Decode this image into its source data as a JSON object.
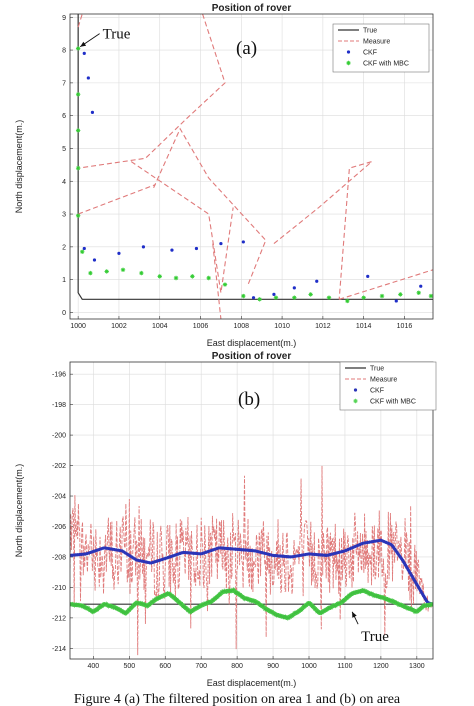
{
  "caption": "Figure 4 (a) The filtered position on area 1 and (b) on area",
  "chart_data": [
    {
      "type": "line",
      "panel_label": "(a)",
      "title": "Position of rover",
      "xlabel": "East displacement(m.)",
      "ylabel": "North displacement(m.)",
      "xlim": [
        999.6,
        1017.4
      ],
      "ylim": [
        -0.2,
        9.1
      ],
      "xticks": [
        1000,
        1002,
        1004,
        1006,
        1008,
        1010,
        1012,
        1014,
        1016
      ],
      "yticks": [
        0,
        1,
        2,
        3,
        4,
        5,
        6,
        7,
        8,
        9
      ],
      "grid": true,
      "legend_position": "top-right",
      "annotation": {
        "text": "True",
        "x": 1001.2,
        "y": 8.5,
        "arrow_to": [
          1000.1,
          8.1
        ]
      },
      "series": [
        {
          "name": "True",
          "style": "solid",
          "color": "#333333",
          "x": [
            1000.0,
            1000.0,
            1000.2,
            1017.4
          ],
          "y": [
            9.1,
            0.6,
            0.4,
            0.4
          ]
        },
        {
          "name": "Measure",
          "style": "dashed",
          "color": "#e07a7a",
          "segments": [
            {
              "x": [
                1000.0,
                1000.2
              ],
              "y": [
                8.7,
                9.1
              ]
            },
            {
              "x": [
                1006.1,
                1007.2,
                1005.3,
                1003.3,
                1000.0
              ],
              "y": [
                9.1,
                7.0,
                5.9,
                4.7,
                4.4
              ]
            },
            {
              "x": [
                1000.0,
                1003.8
              ],
              "y": [
                3.0,
                3.9
              ]
            },
            {
              "x": [
                1002.6,
                1006.4,
                1007.0,
                1007.6
              ],
              "y": [
                4.6,
                3.0,
                0.6,
                3.2
              ]
            },
            {
              "x": [
                1003.7,
                1005.0,
                1006.4,
                1009.2,
                1008.3
              ],
              "y": [
                3.8,
                5.6,
                4.1,
                2.2,
                0.8
              ]
            },
            {
              "x": [
                1006.6,
                1007.0
              ],
              "y": [
                2.1,
                -0.2
              ]
            },
            {
              "x": [
                1009.6,
                1011.8,
                1014.4,
                1013.3,
                1012.8
              ],
              "y": [
                2.1,
                3.2,
                4.6,
                4.4,
                0.4
              ]
            },
            {
              "x": [
                1012.8,
                1017.4
              ],
              "y": [
                0.4,
                1.3
              ]
            }
          ]
        },
        {
          "name": "CKF",
          "style": "dots",
          "color": "#1f2ec8",
          "x": [
            1000.3,
            1000.5,
            1000.7,
            1000.3,
            1000.8,
            1002.0,
            1003.2,
            1004.6,
            1005.8,
            1007.0,
            1008.1,
            1008.6,
            1009.6,
            1010.6,
            1011.7,
            1014.2,
            1015.6,
            1016.8
          ],
          "y": [
            7.9,
            7.15,
            6.1,
            1.95,
            1.6,
            1.8,
            2.0,
            1.9,
            1.95,
            2.1,
            2.15,
            0.45,
            0.55,
            0.75,
            0.95,
            1.1,
            0.35,
            0.8
          ]
        },
        {
          "name": "CKF with MBC",
          "style": "stars",
          "color": "#33cc33",
          "x": [
            1000.0,
            1000.0,
            1000.0,
            1000.0,
            1000.0,
            1000.2,
            1000.6,
            1001.4,
            1002.2,
            1003.1,
            1004.0,
            1004.8,
            1005.6,
            1006.4,
            1007.2,
            1008.1,
            1008.9,
            1009.7,
            1010.6,
            1011.4,
            1012.3,
            1013.2,
            1014.0,
            1014.9,
            1015.8,
            1016.7,
            1017.3
          ],
          "y": [
            8.05,
            6.65,
            5.55,
            4.4,
            2.95,
            1.85,
            1.2,
            1.25,
            1.3,
            1.2,
            1.1,
            1.05,
            1.1,
            1.05,
            0.85,
            0.5,
            0.4,
            0.45,
            0.45,
            0.55,
            0.45,
            0.35,
            0.45,
            0.5,
            0.55,
            0.6,
            0.5
          ]
        }
      ]
    },
    {
      "type": "line",
      "panel_label": "(b)",
      "title": "Position of rover",
      "xlabel": "East displacement(m.)",
      "ylabel": "North displacement(m.)",
      "xlim": [
        335,
        1345
      ],
      "ylim": [
        -214.7,
        -195.2
      ],
      "xticks": [
        400,
        500,
        600,
        700,
        800,
        900,
        1000,
        1100,
        1200,
        1300
      ],
      "yticks": [
        -196,
        -198,
        -200,
        -202,
        -204,
        -206,
        -208,
        -210,
        -212,
        -214
      ],
      "grid": true,
      "legend_position": "top-right",
      "annotation": {
        "text": "True",
        "x": 1145,
        "y": -213.2,
        "arrow_to": [
          1120,
          -211.6
        ]
      },
      "series": [
        {
          "name": "True",
          "style": "solid",
          "color": "#333333",
          "x": [
            335,
            1345
          ],
          "y": [
            -211.1,
            -211.1
          ]
        },
        {
          "name": "Measure",
          "style": "noisy-dashed",
          "color": "#e07a7a",
          "noise_amplitude": 2.6,
          "x": [
            335,
            400,
            500,
            600,
            700,
            800,
            900,
            1000,
            1100,
            1200,
            1250,
            1300,
            1330,
            1345
          ],
          "y": [
            -207.7,
            -207.6,
            -207.9,
            -208.2,
            -207.8,
            -207.6,
            -207.9,
            -208.0,
            -207.8,
            -207.3,
            -208.0,
            -209.5,
            -211.0,
            -211.1
          ]
        },
        {
          "name": "CKF",
          "style": "thick-dots",
          "color": "#2a35b8",
          "x": [
            335,
            380,
            430,
            480,
            520,
            560,
            600,
            650,
            700,
            750,
            800,
            850,
            900,
            950,
            1000,
            1050,
            1100,
            1150,
            1200,
            1230,
            1260,
            1290,
            1310,
            1330,
            1345
          ],
          "y": [
            -207.9,
            -207.8,
            -207.4,
            -207.6,
            -208.2,
            -208.4,
            -208.1,
            -207.7,
            -207.8,
            -207.4,
            -207.5,
            -207.6,
            -207.9,
            -208.0,
            -207.8,
            -207.9,
            -207.6,
            -207.1,
            -206.9,
            -207.2,
            -208.2,
            -209.4,
            -210.2,
            -211.0,
            -211.1
          ]
        },
        {
          "name": "CKF with MBC",
          "style": "thick-stars",
          "color": "#55d455",
          "x": [
            335,
            370,
            400,
            430,
            460,
            490,
            520,
            550,
            580,
            610,
            640,
            670,
            700,
            730,
            760,
            790,
            820,
            850,
            880,
            910,
            940,
            970,
            1000,
            1030,
            1060,
            1090,
            1120,
            1150,
            1180,
            1210,
            1240,
            1270,
            1300,
            1320,
            1345
          ],
          "y": [
            -211.1,
            -211.2,
            -211.6,
            -211.1,
            -211.3,
            -211.7,
            -211.0,
            -211.2,
            -210.7,
            -210.4,
            -211.0,
            -211.6,
            -211.2,
            -210.9,
            -210.3,
            -210.2,
            -210.7,
            -210.9,
            -211.4,
            -211.8,
            -212.0,
            -211.6,
            -211.0,
            -211.7,
            -211.3,
            -211.0,
            -210.4,
            -210.2,
            -210.5,
            -210.7,
            -211.0,
            -211.3,
            -211.6,
            -211.2,
            -211.1
          ]
        }
      ]
    }
  ]
}
